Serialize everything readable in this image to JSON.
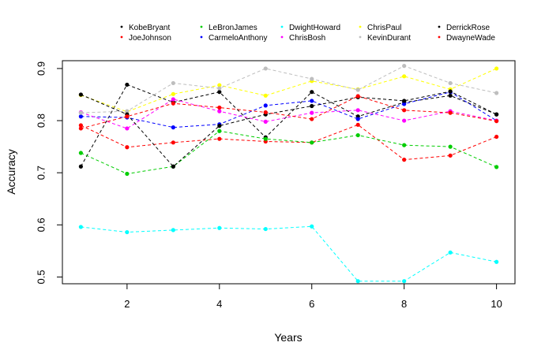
{
  "chart_data": {
    "type": "line",
    "title": "",
    "xlabel": "Years",
    "ylabel": "Accuracy",
    "x": [
      1,
      2,
      3,
      4,
      5,
      6,
      7,
      8,
      9,
      10
    ],
    "xticks": [
      2,
      4,
      6,
      8,
      10
    ],
    "yticks": [
      0.5,
      0.6,
      0.7,
      0.8,
      0.9
    ],
    "xlim": [
      0.6,
      10.4
    ],
    "ylim": [
      0.487,
      0.915
    ],
    "grid": false,
    "legend_position": "top",
    "series": [
      {
        "name": "KobeBryant",
        "color": "#000000",
        "values": [
          0.712,
          0.869,
          0.835,
          0.855,
          0.768,
          0.855,
          0.808,
          0.835,
          0.848,
          0.812
        ]
      },
      {
        "name": "JoeJohnson",
        "color": "#ff0000",
        "values": [
          0.791,
          0.749,
          0.758,
          0.765,
          0.76,
          0.758,
          0.792,
          0.725,
          0.733,
          0.769
        ]
      },
      {
        "name": "LeBronJames",
        "color": "#00cd00",
        "values": [
          0.738,
          0.698,
          0.712,
          0.78,
          0.765,
          0.758,
          0.772,
          0.753,
          0.75,
          0.711
        ]
      },
      {
        "name": "CarmeloAnthony",
        "color": "#0000ff",
        "values": [
          0.808,
          0.806,
          0.787,
          0.793,
          0.829,
          0.838,
          0.803,
          0.832,
          0.855,
          0.8
        ]
      },
      {
        "name": "DwightHoward",
        "color": "#00ffff",
        "values": [
          0.596,
          0.586,
          0.59,
          0.594,
          0.592,
          0.597,
          0.492,
          0.492,
          0.547,
          0.529
        ]
      },
      {
        "name": "ChrisBosh",
        "color": "#ff00ff",
        "values": [
          0.816,
          0.785,
          0.841,
          0.818,
          0.798,
          0.815,
          0.82,
          0.8,
          0.818,
          0.8
        ]
      },
      {
        "name": "ChrisPaul",
        "color": "#ffff00",
        "values": [
          0.849,
          0.817,
          0.851,
          0.868,
          0.848,
          0.876,
          0.86,
          0.885,
          0.86,
          0.9
        ]
      },
      {
        "name": "KevinDurant",
        "color": "#bebebe",
        "values": [
          0.815,
          0.818,
          0.872,
          0.862,
          0.9,
          0.88,
          0.859,
          0.905,
          0.872,
          0.853
        ]
      },
      {
        "name": "DerrickRose",
        "color": "#000000",
        "values": [
          0.85,
          0.812,
          0.712,
          0.79,
          0.812,
          0.828,
          0.845,
          0.838,
          0.856,
          0.812
        ]
      },
      {
        "name": "DwayneWade",
        "color": "#ff0000",
        "values": [
          0.785,
          0.808,
          0.833,
          0.825,
          0.816,
          0.803,
          0.847,
          0.82,
          0.815,
          0.799
        ]
      }
    ]
  }
}
